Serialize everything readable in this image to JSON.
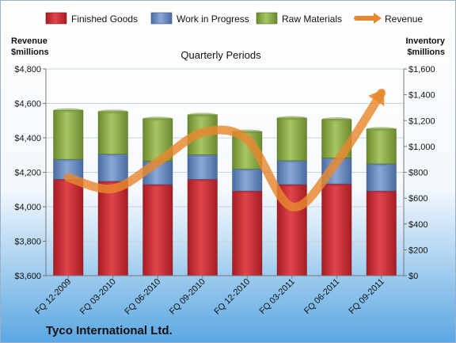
{
  "chart_data": {
    "type": "bar",
    "title": "Quarterly Periods",
    "footer": "Tyco International Ltd.",
    "categories": [
      "FQ 12-2009",
      "FQ 03-2010",
      "FQ 06-2010",
      "FQ 09-2010",
      "FQ 12-2010",
      "FQ 03-2011",
      "FQ 06-2011",
      "FQ 09-2011"
    ],
    "ylabel_left": [
      "Revenue",
      "$millions"
    ],
    "ylabel_right": [
      "Inventory",
      "$millions"
    ],
    "ylim_left": [
      3600,
      4800
    ],
    "ylim_right": [
      0,
      1600
    ],
    "left_ticks": [
      "$3,600",
      "$3,800",
      "$4,000",
      "$4,200",
      "$4,400",
      "$4,600",
      "$4,800"
    ],
    "right_ticks": [
      "$0",
      "$200",
      "$400",
      "$600",
      "$800",
      "$1,000",
      "$1,200",
      "$1,400",
      "$1,600"
    ],
    "series": [
      {
        "name": "Finished Goods",
        "axis": "right",
        "color": "#c0232b",
        "values": [
          745,
          730,
          705,
          745,
          655,
          705,
          710,
          655
        ]
      },
      {
        "name": "Work in Progress",
        "axis": "right",
        "color": "#5b7fb7",
        "values": [
          155,
          210,
          180,
          190,
          170,
          185,
          200,
          210
        ]
      },
      {
        "name": "Raw Materials",
        "axis": "right",
        "color": "#7a9a3a",
        "values": [
          380,
          330,
          330,
          310,
          290,
          330,
          300,
          270
        ]
      },
      {
        "name": "Revenue",
        "type": "line",
        "axis": "left",
        "color": "#e8882e",
        "values": [
          4170,
          4105,
          4260,
          4430,
          4390,
          4000,
          4260,
          4660
        ]
      }
    ],
    "legend_position": "top",
    "grid": true
  }
}
